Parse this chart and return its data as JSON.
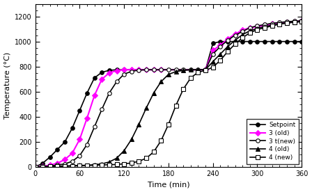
{
  "title": "",
  "xlabel": "Time (min)",
  "ylabel": "Temperature (°C)",
  "xlim": [
    0,
    360
  ],
  "ylim": [
    0,
    1300
  ],
  "xticks": [
    0,
    60,
    120,
    180,
    240,
    300,
    360
  ],
  "yticks": [
    0,
    200,
    400,
    600,
    800,
    1000,
    1200
  ],
  "setpoint": {
    "x": [
      0,
      10,
      20,
      30,
      40,
      50,
      60,
      70,
      80,
      90,
      100,
      110,
      120,
      230,
      240,
      250,
      260,
      270,
      280,
      290,
      300,
      310,
      320,
      330,
      340,
      350,
      360
    ],
    "y": [
      0,
      30,
      80,
      140,
      200,
      310,
      450,
      590,
      710,
      755,
      770,
      775,
      775,
      775,
      985,
      1000,
      1000,
      1000,
      1000,
      1000,
      1000,
      1000,
      1000,
      1000,
      1000,
      1000,
      1000
    ],
    "color": "black",
    "marker": "o",
    "markersize": 4,
    "label": "Setpoint",
    "linewidth": 1.2,
    "markerfacecolor": "black"
  },
  "s3old": {
    "x": [
      0,
      10,
      20,
      30,
      40,
      50,
      60,
      70,
      80,
      90,
      100,
      110,
      120,
      130,
      140,
      150,
      160,
      170,
      230,
      240,
      250,
      260,
      270,
      280,
      290,
      300,
      310,
      320,
      330,
      340,
      350,
      360
    ],
    "y": [
      0,
      5,
      15,
      30,
      60,
      110,
      220,
      390,
      570,
      700,
      750,
      768,
      775,
      775,
      775,
      775,
      775,
      775,
      775,
      930,
      970,
      1020,
      1060,
      1090,
      1110,
      1120,
      1130,
      1140,
      1150,
      1155,
      1160,
      1165
    ],
    "color": "magenta",
    "marker": "D",
    "markersize": 4,
    "label": "3 (old)",
    "linewidth": 1.5,
    "markerfacecolor": "magenta"
  },
  "s3new": {
    "x": [
      0,
      10,
      20,
      30,
      40,
      50,
      60,
      70,
      80,
      90,
      100,
      110,
      120,
      130,
      140,
      150,
      160,
      170,
      180,
      190,
      200,
      210,
      220,
      230,
      240,
      250,
      260,
      270,
      280,
      290,
      300,
      310,
      320,
      330,
      340,
      350,
      360
    ],
    "y": [
      0,
      3,
      8,
      15,
      25,
      45,
      90,
      180,
      320,
      460,
      590,
      680,
      740,
      762,
      772,
      775,
      775,
      775,
      775,
      775,
      775,
      775,
      775,
      775,
      900,
      960,
      1010,
      1050,
      1080,
      1110,
      1125,
      1135,
      1145,
      1152,
      1158,
      1162,
      1165
    ],
    "color": "black",
    "marker": "o",
    "markersize": 4,
    "label": "3 t(new)",
    "linewidth": 1.2,
    "markerfacecolor": "white"
  },
  "s4old": {
    "x": [
      0,
      10,
      20,
      30,
      40,
      50,
      60,
      70,
      80,
      90,
      100,
      110,
      120,
      130,
      140,
      150,
      160,
      170,
      180,
      190,
      200,
      210,
      220,
      230,
      240,
      250,
      260,
      270,
      280,
      290,
      300,
      310,
      320,
      330,
      340,
      350,
      360
    ],
    "y": [
      0,
      2,
      4,
      6,
      8,
      10,
      12,
      14,
      18,
      25,
      40,
      70,
      130,
      220,
      340,
      470,
      590,
      680,
      738,
      760,
      770,
      774,
      775,
      775,
      840,
      900,
      960,
      1010,
      1055,
      1085,
      1105,
      1120,
      1130,
      1140,
      1148,
      1153,
      1158
    ],
    "color": "black",
    "marker": "^",
    "markersize": 4,
    "label": "4 (old)",
    "linewidth": 1.2,
    "markerfacecolor": "black"
  },
  "s4new": {
    "x": [
      0,
      10,
      20,
      30,
      40,
      50,
      60,
      70,
      80,
      90,
      100,
      110,
      120,
      130,
      140,
      150,
      160,
      170,
      180,
      190,
      200,
      210,
      220,
      230,
      240,
      250,
      260,
      270,
      280,
      290,
      300,
      310,
      320,
      330,
      340,
      350,
      360
    ],
    "y": [
      0,
      2,
      3,
      5,
      6,
      8,
      10,
      12,
      14,
      16,
      18,
      20,
      25,
      32,
      45,
      70,
      120,
      210,
      340,
      490,
      620,
      710,
      755,
      770,
      795,
      850,
      920,
      980,
      1030,
      1070,
      1095,
      1110,
      1125,
      1138,
      1148,
      1155,
      1160
    ],
    "color": "black",
    "marker": "s",
    "markersize": 4,
    "label": "4 (new)",
    "linewidth": 1.2,
    "markerfacecolor": "white"
  },
  "legend_loc": "lower right",
  "figsize": [
    4.48,
    2.76
  ],
  "dpi": 100
}
